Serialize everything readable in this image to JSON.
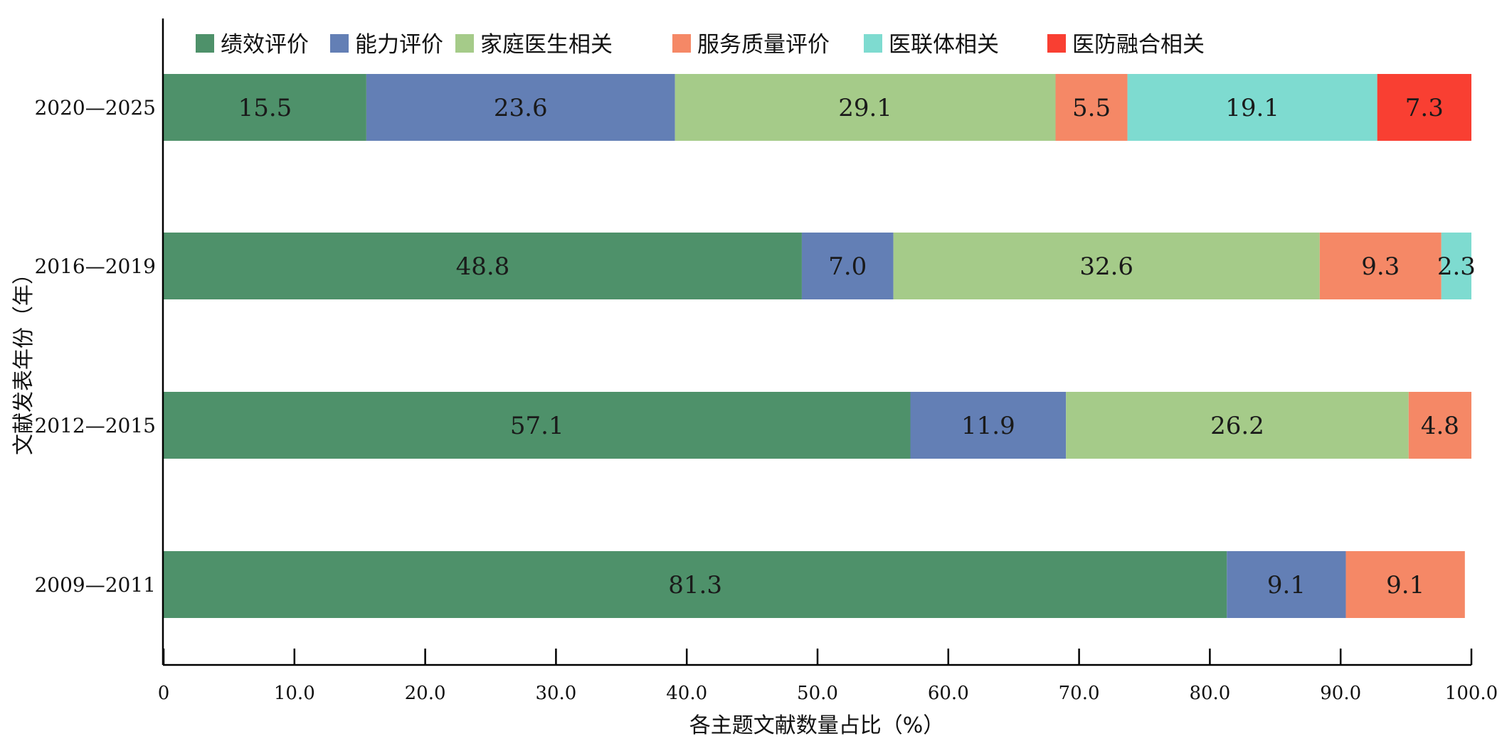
{
  "chart_data": {
    "type": "bar",
    "orientation": "horizontal",
    "stacked": true,
    "categories": [
      "2020—2025",
      "2016—2019",
      "2012—2015",
      "2009—2011"
    ],
    "series": [
      {
        "name": "绩效评价",
        "color": "#4e916a",
        "values": [
          15.5,
          48.8,
          57.1,
          81.3
        ]
      },
      {
        "name": "能力评价",
        "color": "#637fb5",
        "values": [
          23.6,
          7.0,
          11.9,
          9.1
        ]
      },
      {
        "name": "家庭医生相关",
        "color": "#a5cb89",
        "values": [
          29.1,
          32.6,
          26.2,
          null
        ]
      },
      {
        "name": "服务质量评价",
        "color": "#f58866",
        "values": [
          5.5,
          9.3,
          4.8,
          9.1
        ]
      },
      {
        "name": "医联体相关",
        "color": "#7edbd0",
        "values": [
          19.1,
          2.3,
          null,
          null
        ]
      },
      {
        "name": "医防融合相关",
        "color": "#f93f32",
        "values": [
          7.3,
          null,
          null,
          null
        ]
      }
    ],
    "data_labels": [
      [
        "15.5",
        "23.6",
        "29.1",
        "5.5",
        "19.1",
        "7.3"
      ],
      [
        "48.8",
        "7.0",
        "32.6",
        "9.3",
        "2.3",
        null
      ],
      [
        "57.1",
        "11.9",
        "26.2",
        "4.8",
        null,
        null
      ],
      [
        "81.3",
        "9.1",
        null,
        "9.1",
        null,
        null
      ]
    ],
    "xlabel": "各主题文献数量占比（%）",
    "ylabel": "文献发表年份（年）",
    "xlim": [
      0,
      100
    ],
    "xticks": [
      "0",
      "10.0",
      "20.0",
      "30.0",
      "40.0",
      "50.0",
      "60.0",
      "70.0",
      "80.0",
      "90.0",
      "100.0"
    ],
    "grid": false,
    "legend_position": "top"
  }
}
